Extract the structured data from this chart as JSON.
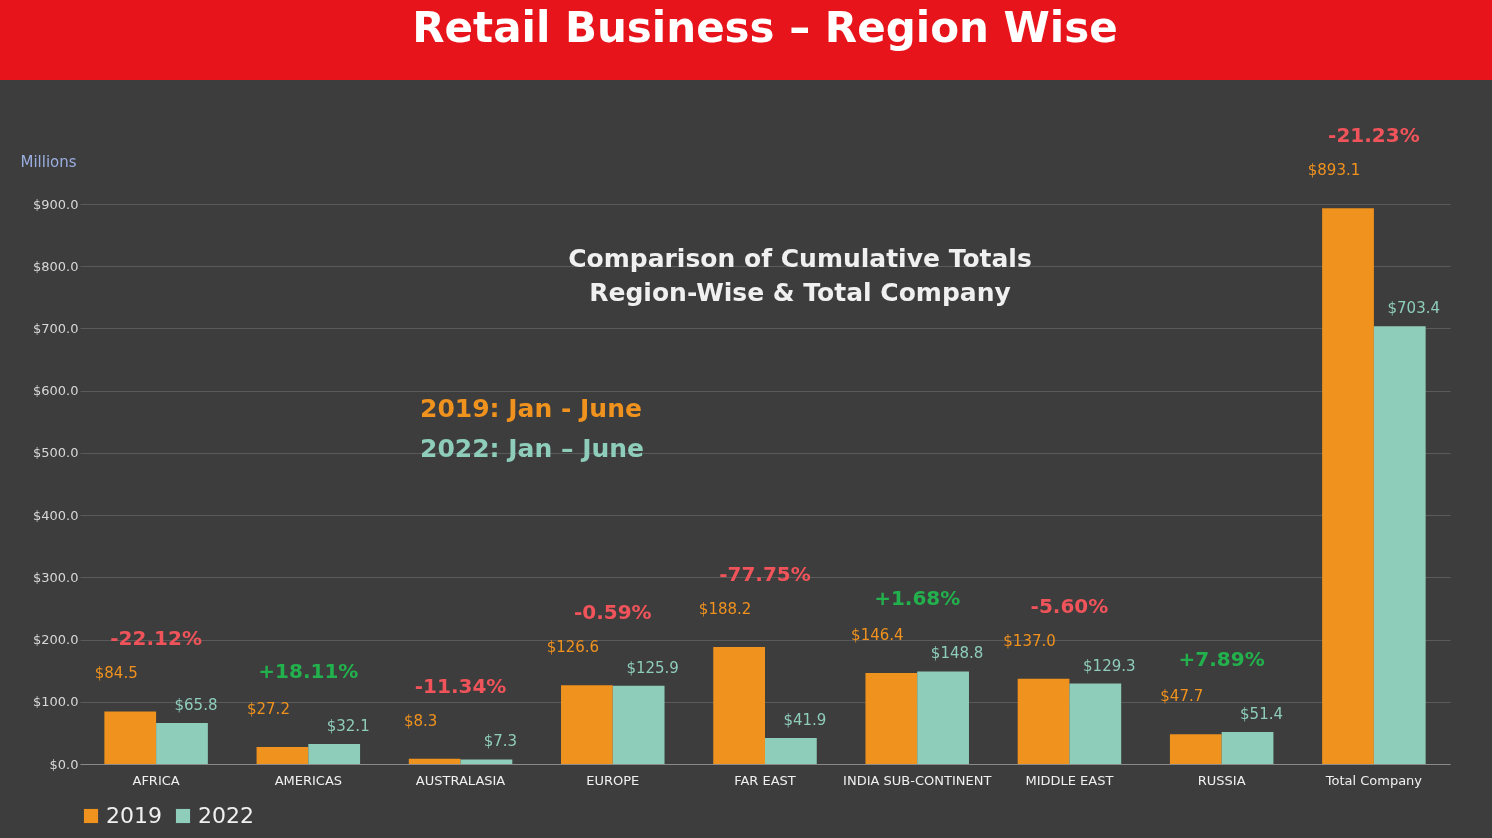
{
  "chart_data": {
    "type": "bar",
    "title": "Retail Business – Region Wise",
    "subtitle": "Comparison of Cumulative Totals Region-Wise & Total Company",
    "ylabel": "Millions",
    "categories": [
      "AFRICA",
      "AMERICAS",
      "AUSTRALASIA",
      "EUROPE",
      "FAR EAST",
      "INDIA SUB-CONTINENT",
      "MIDDLE EAST",
      "RUSSIA",
      "Total Company"
    ],
    "series": [
      {
        "name": "2019",
        "color": "#f0921e",
        "values": [
          84.5,
          27.2,
          8.3,
          126.6,
          188.2,
          146.4,
          137.0,
          47.7,
          893.1
        ],
        "value_labels": [
          "$84.5",
          "$27.2",
          "$8.3",
          "$126.6",
          "$188.2",
          "$146.4",
          "$137.0",
          "$47.7",
          "$893.1"
        ]
      },
      {
        "name": "2022",
        "color": "#8fcdbb",
        "values": [
          65.8,
          32.1,
          7.3,
          125.9,
          41.9,
          148.8,
          129.3,
          51.4,
          703.4
        ],
        "value_labels": [
          "$65.8",
          "$32.1",
          "$7.3",
          "$125.9",
          "$41.9",
          "$148.8",
          "$129.3",
          "$51.4",
          "$703.4"
        ]
      }
    ],
    "ylim": [
      0,
      900
    ],
    "yticks": [
      {
        "value": 0,
        "label": "$0.0"
      },
      {
        "value": 100,
        "label": "$100.0"
      },
      {
        "value": 200,
        "label": "$200.0"
      },
      {
        "value": 300,
        "label": "$300.0"
      },
      {
        "value": 400,
        "label": "$400.0"
      },
      {
        "value": 500,
        "label": "$500.0"
      },
      {
        "value": 600,
        "label": "$600.0"
      },
      {
        "value": 700,
        "label": "$700.0"
      },
      {
        "value": 800,
        "label": "$800.0"
      },
      {
        "value": 900,
        "label": "$900.0"
      }
    ],
    "grid": "y",
    "legend": "bottom",
    "annotations": [
      "2019: Jan - June",
      "2022: Jan – June",
      "-22.12%",
      "+18.11%",
      "-11.34%",
      "-0.59%",
      "-77.75%",
      "+1.68%",
      "-5.60%",
      "+7.89%",
      "-21.23%"
    ]
  }
}
